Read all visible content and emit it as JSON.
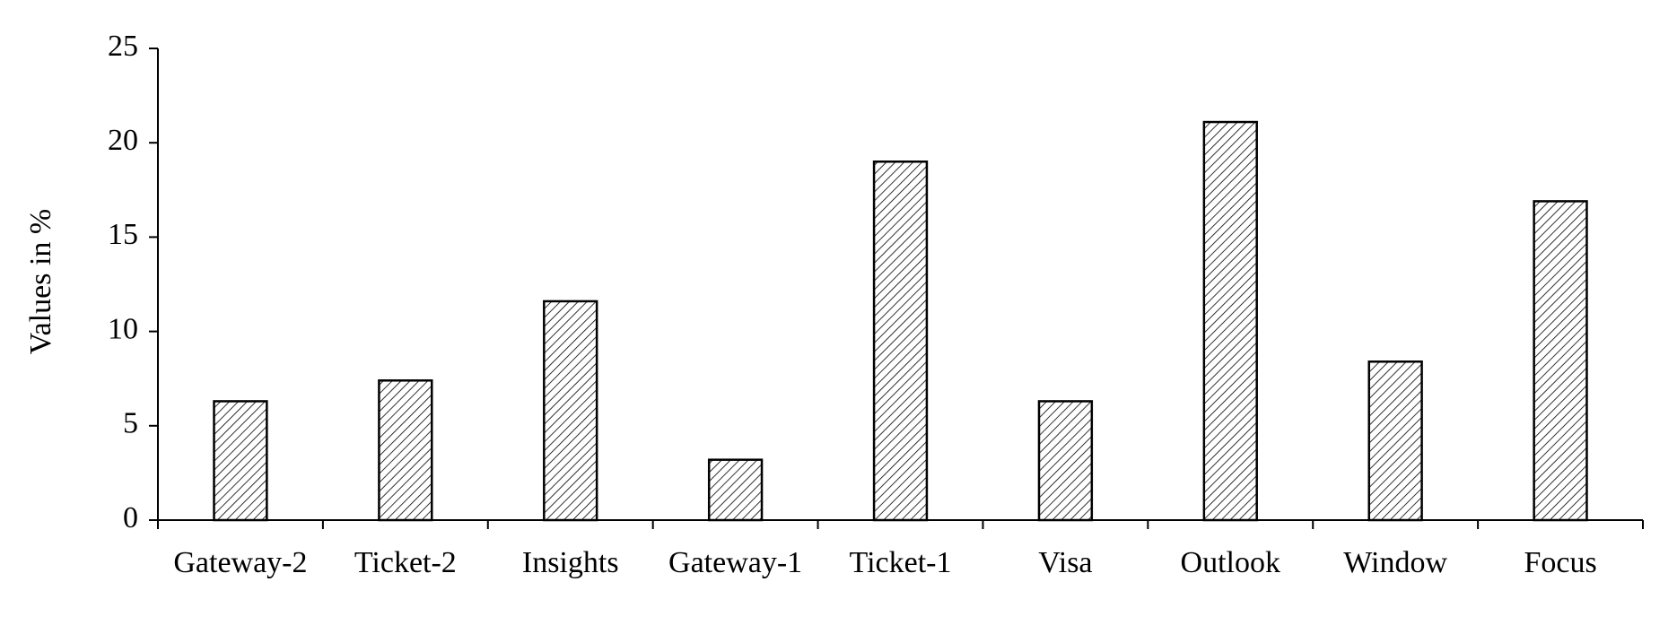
{
  "chart_data": {
    "type": "bar",
    "y_label": "Values in %",
    "categories": [
      "Gateway-2",
      "Ticket-2",
      "Insights",
      "Gateway-1",
      "Ticket-1",
      "Visa",
      "Outlook",
      "Window",
      "Focus"
    ],
    "values": [
      6.3,
      7.4,
      11.6,
      3.2,
      19.0,
      6.3,
      21.1,
      8.4,
      16.9
    ],
    "color": "#000000",
    "ylim": [
      0,
      25
    ],
    "yticks": [
      0,
      5,
      10,
      15,
      20,
      25
    ],
    "grid": false
  }
}
